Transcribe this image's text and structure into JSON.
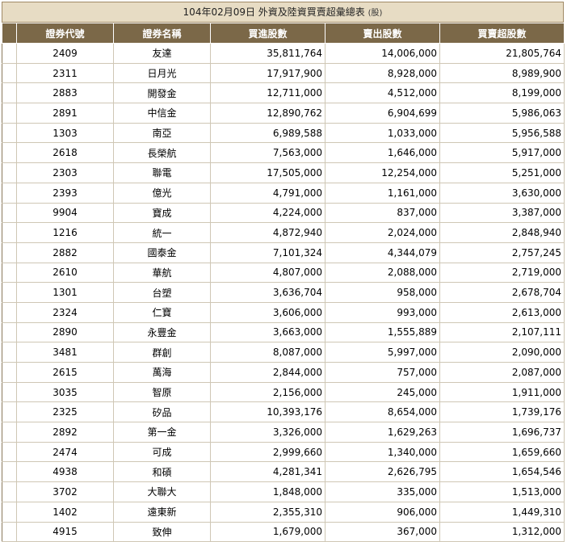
{
  "title": {
    "text": "104年02月09日 外資及陸資買賣超彙總表",
    "unit": "(股)"
  },
  "columns": [
    "證券代號",
    "證券名稱",
    "買進股數",
    "賣出股數",
    "買賣超股數"
  ],
  "rows": [
    [
      "2409",
      "友達",
      "35,811,764",
      "14,006,000",
      "21,805,764"
    ],
    [
      "2311",
      "日月光",
      "17,917,900",
      "8,928,000",
      "8,989,900"
    ],
    [
      "2883",
      "開發金",
      "12,711,000",
      "4,512,000",
      "8,199,000"
    ],
    [
      "2891",
      "中信金",
      "12,890,762",
      "6,904,699",
      "5,986,063"
    ],
    [
      "1303",
      "南亞",
      "6,989,588",
      "1,033,000",
      "5,956,588"
    ],
    [
      "2618",
      "長榮航",
      "7,563,000",
      "1,646,000",
      "5,917,000"
    ],
    [
      "2303",
      "聯電",
      "17,505,000",
      "12,254,000",
      "5,251,000"
    ],
    [
      "2393",
      "億光",
      "4,791,000",
      "1,161,000",
      "3,630,000"
    ],
    [
      "9904",
      "寶成",
      "4,224,000",
      "837,000",
      "3,387,000"
    ],
    [
      "1216",
      "統一",
      "4,872,940",
      "2,024,000",
      "2,848,940"
    ],
    [
      "2882",
      "國泰金",
      "7,101,324",
      "4,344,079",
      "2,757,245"
    ],
    [
      "2610",
      "華航",
      "4,807,000",
      "2,088,000",
      "2,719,000"
    ],
    [
      "1301",
      "台塑",
      "3,636,704",
      "958,000",
      "2,678,704"
    ],
    [
      "2324",
      "仁寶",
      "3,606,000",
      "993,000",
      "2,613,000"
    ],
    [
      "2890",
      "永豐金",
      "3,663,000",
      "1,555,889",
      "2,107,111"
    ],
    [
      "3481",
      "群創",
      "8,087,000",
      "5,997,000",
      "2,090,000"
    ],
    [
      "2615",
      "萬海",
      "2,844,000",
      "757,000",
      "2,087,000"
    ],
    [
      "3035",
      "智原",
      "2,156,000",
      "245,000",
      "1,911,000"
    ],
    [
      "2325",
      "矽品",
      "10,393,176",
      "8,654,000",
      "1,739,176"
    ],
    [
      "2892",
      "第一金",
      "3,326,000",
      "1,629,263",
      "1,696,737"
    ],
    [
      "2474",
      "可成",
      "2,999,660",
      "1,340,000",
      "1,659,660"
    ],
    [
      "4938",
      "和碩",
      "4,281,341",
      "2,626,795",
      "1,654,546"
    ],
    [
      "3702",
      "大聯大",
      "1,848,000",
      "335,000",
      "1,513,000"
    ],
    [
      "1402",
      "遠東新",
      "2,355,310",
      "906,000",
      "1,449,310"
    ],
    [
      "4915",
      "致伸",
      "1,679,000",
      "367,000",
      "1,312,000"
    ]
  ]
}
